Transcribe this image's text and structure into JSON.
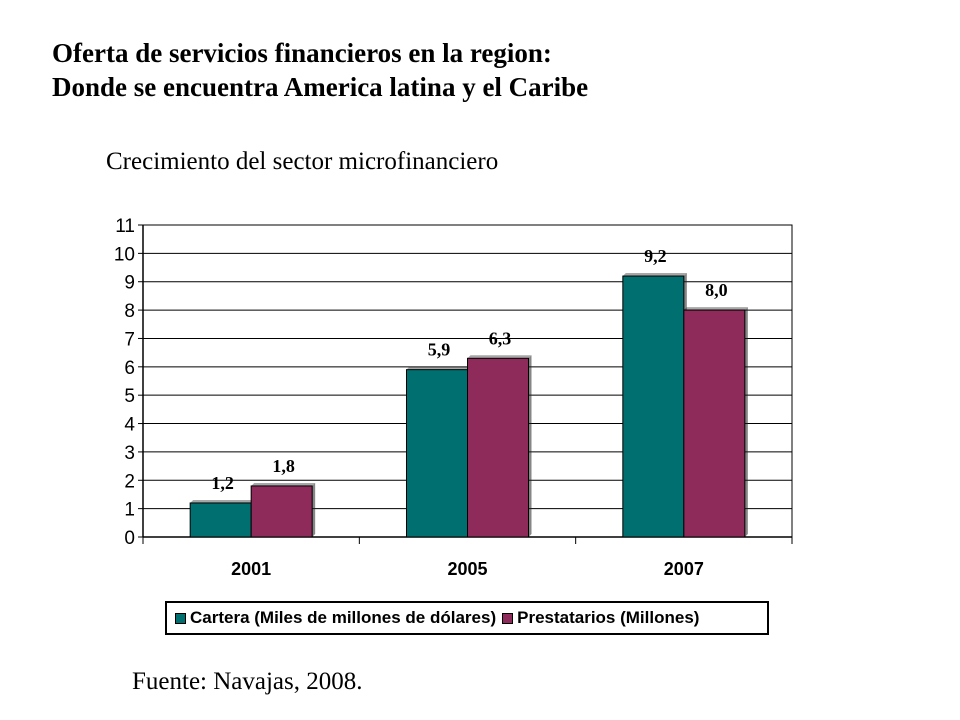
{
  "header": {
    "title_line1": "Oferta de servicios financieros en la region:",
    "title_line2": "Donde se encuentra America latina y el Caribe"
  },
  "subtitle": "Crecimiento del sector microfinanciero",
  "source": "Fuente: Navajas, 2008.",
  "colors": {
    "series_1": "#006F6F",
    "series_2": "#8E2B5A"
  },
  "chart_data": {
    "type": "bar",
    "categories": [
      "2001",
      "2005",
      "2007"
    ],
    "series": [
      {
        "name": "Cartera (Miles de millones de dólares)",
        "values": [
          1.2,
          5.9,
          9.2
        ],
        "labels": [
          "1,2",
          "5,9",
          "9,2"
        ]
      },
      {
        "name": "Prestatarios (Millones)",
        "values": [
          1.8,
          6.3,
          8.0
        ],
        "labels": [
          "1,8",
          "6,3",
          "8,0"
        ]
      }
    ],
    "yticks": [
      "0",
      "1",
      "2",
      "3",
      "4",
      "5",
      "6",
      "7",
      "8",
      "9",
      "10",
      "11"
    ],
    "ylim": [
      0,
      11
    ],
    "grid": true,
    "legend": "bottom"
  }
}
